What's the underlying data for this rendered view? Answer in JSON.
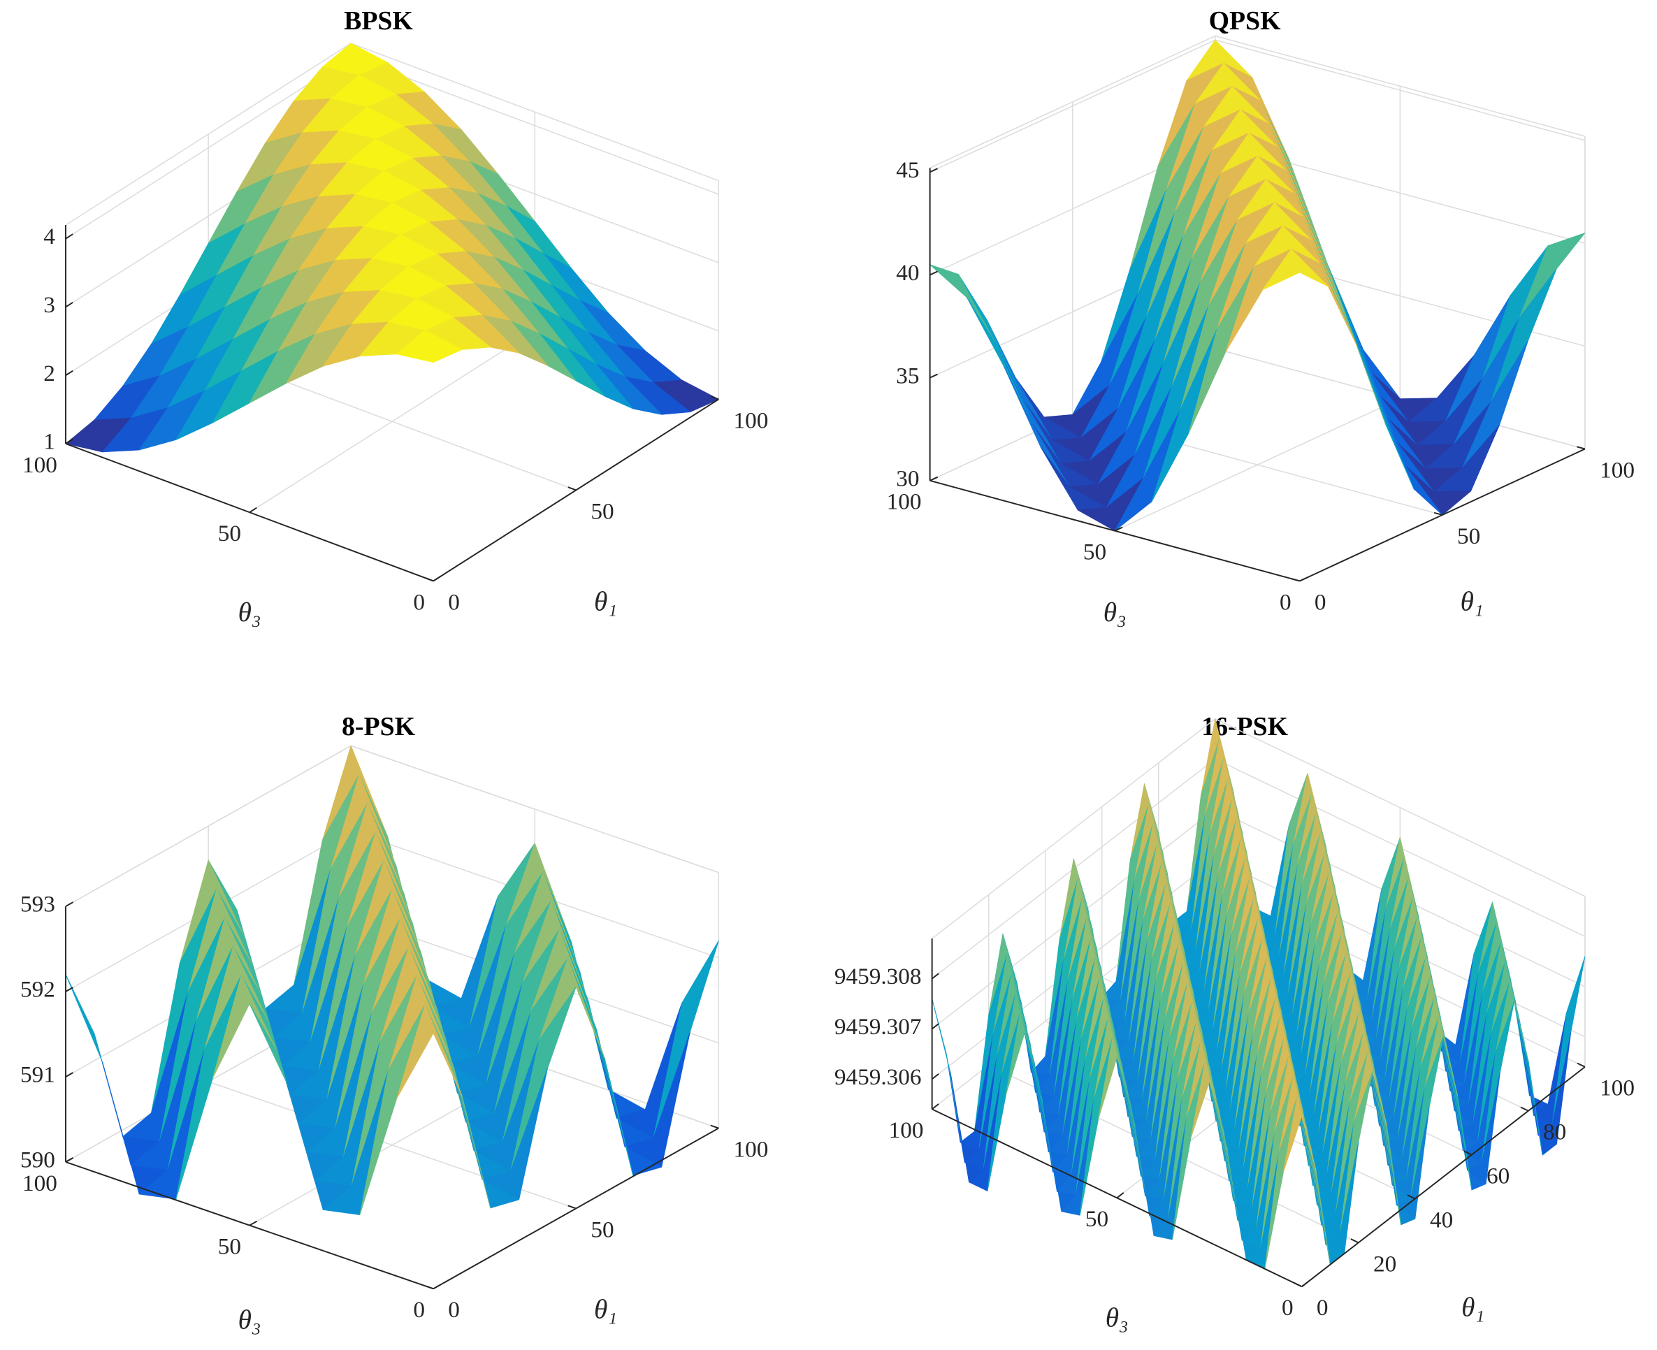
{
  "chart_data": [
    {
      "type": "surface",
      "title": "BPSK",
      "xlabel": "θ₃",
      "ylabel": "θ₁",
      "colormap": "parula",
      "grid": true,
      "x": [
        0,
        10,
        20,
        30,
        40,
        50,
        60,
        70,
        80,
        90,
        100
      ],
      "y": [
        0,
        10,
        20,
        30,
        40,
        50,
        60,
        70,
        80,
        90,
        100
      ],
      "z": [
        [
          4.2,
          4.12,
          3.89,
          3.54,
          3.09,
          2.6,
          2.11,
          1.66,
          1.31,
          1.08,
          1.0
        ],
        [
          4.12,
          4.2,
          4.12,
          3.89,
          3.54,
          3.09,
          2.6,
          2.11,
          1.66,
          1.31,
          1.08
        ],
        [
          3.89,
          4.12,
          4.2,
          4.12,
          3.89,
          3.54,
          3.09,
          2.6,
          2.11,
          1.66,
          1.31
        ],
        [
          3.54,
          3.89,
          4.12,
          4.2,
          4.12,
          3.89,
          3.54,
          3.09,
          2.6,
          2.11,
          1.66
        ],
        [
          3.09,
          3.54,
          3.89,
          4.12,
          4.2,
          4.12,
          3.89,
          3.54,
          3.09,
          2.6,
          2.11
        ],
        [
          2.6,
          3.09,
          3.54,
          3.89,
          4.12,
          4.2,
          4.12,
          3.89,
          3.54,
          3.09,
          2.6
        ],
        [
          2.11,
          2.6,
          3.09,
          3.54,
          3.89,
          4.12,
          4.2,
          4.12,
          3.89,
          3.54,
          3.09
        ],
        [
          1.66,
          2.11,
          2.6,
          3.09,
          3.54,
          3.89,
          4.12,
          4.2,
          4.12,
          3.89,
          3.54
        ],
        [
          1.31,
          1.66,
          2.11,
          2.6,
          3.09,
          3.54,
          3.89,
          4.12,
          4.2,
          4.12,
          3.89
        ],
        [
          1.08,
          1.31,
          1.66,
          2.11,
          2.6,
          3.09,
          3.54,
          3.89,
          4.12,
          4.2,
          4.12
        ],
        [
          1.0,
          1.08,
          1.31,
          1.66,
          2.11,
          2.6,
          3.09,
          3.54,
          3.89,
          4.12,
          4.2
        ]
      ],
      "xlim": [
        0,
        100
      ],
      "ylim": [
        0,
        100
      ],
      "zlim": [
        1,
        4.2
      ],
      "xticks": [
        0,
        50,
        100
      ],
      "yticks": [
        0,
        50,
        100
      ],
      "zticks": [
        1,
        2,
        3,
        4
      ]
    },
    {
      "type": "surface",
      "title": "QPSK",
      "xlabel": "θ₃",
      "ylabel": "θ₁",
      "colormap": "parula",
      "grid": true,
      "x": [
        0,
        10,
        20,
        30,
        40,
        50,
        60,
        70,
        80,
        90,
        100
      ],
      "y": [
        0,
        10,
        20,
        30,
        40,
        50,
        60,
        70,
        80,
        90,
        100
      ],
      "z": [
        [
          45,
          43.67,
          40.17,
          35.73,
          31.91,
          30,
          30.52,
          33.08,
          36.53,
          39.39,
          40.5
        ],
        [
          43.67,
          45,
          43.67,
          40.17,
          35.73,
          31.91,
          30,
          30.52,
          33.08,
          36.53,
          39.39
        ],
        [
          40.17,
          43.67,
          45,
          43.67,
          40.17,
          35.73,
          31.91,
          30,
          30.52,
          33.08,
          36.53
        ],
        [
          35.73,
          40.17,
          43.67,
          45,
          43.67,
          40.17,
          35.73,
          31.91,
          30,
          30.52,
          33.08
        ],
        [
          31.91,
          35.73,
          40.17,
          43.67,
          45,
          43.67,
          40.17,
          35.73,
          31.91,
          30,
          30.52
        ],
        [
          30,
          31.91,
          35.73,
          40.17,
          43.67,
          45,
          43.67,
          40.17,
          35.73,
          31.91,
          30
        ],
        [
          30.52,
          30,
          31.91,
          35.73,
          40.17,
          43.67,
          45,
          43.67,
          40.17,
          35.73,
          31.91
        ],
        [
          33.08,
          30.52,
          30,
          31.91,
          35.73,
          40.17,
          43.67,
          45,
          43.67,
          40.17,
          35.73
        ],
        [
          36.53,
          33.08,
          30.52,
          30,
          31.91,
          35.73,
          40.17,
          43.67,
          45,
          43.67,
          40.17
        ],
        [
          39.39,
          36.53,
          33.08,
          30.52,
          30,
          31.91,
          35.73,
          40.17,
          43.67,
          45,
          43.67
        ],
        [
          40.5,
          39.39,
          36.53,
          33.08,
          30.52,
          30,
          31.91,
          35.73,
          40.17,
          43.67,
          45
        ]
      ],
      "xlim": [
        0,
        100
      ],
      "ylim": [
        0,
        100
      ],
      "zlim": [
        30,
        45.2
      ],
      "xticks": [
        0,
        50,
        100
      ],
      "yticks": [
        0,
        50,
        100
      ],
      "zticks": [
        30,
        35,
        40,
        45
      ]
    },
    {
      "type": "surface",
      "title": "8-PSK",
      "xlabel": "θ₃",
      "ylabel": "θ₁",
      "colormap": "parula",
      "grid": true,
      "x": [
        0,
        10,
        20,
        30,
        40,
        50,
        60,
        70,
        80,
        90,
        100
      ],
      "y": [
        0,
        10,
        20,
        30,
        40,
        50,
        60,
        70,
        80,
        90,
        100
      ],
      "z": [
        [
          593,
          592.08,
          590.57,
          590.48,
          591.83,
          592.6,
          591.58,
          590.01,
          589.92,
          591.32,
          592.2
        ],
        [
          592.08,
          593,
          592.08,
          590.57,
          590.48,
          591.83,
          592.6,
          591.58,
          590.01,
          589.92,
          591.32
        ],
        [
          590.57,
          592.08,
          593,
          592.08,
          590.57,
          590.48,
          591.83,
          592.6,
          591.58,
          590.01,
          589.92
        ],
        [
          590.48,
          590.57,
          592.08,
          593,
          592.08,
          590.57,
          590.48,
          591.83,
          592.6,
          591.58,
          590.01
        ],
        [
          591.83,
          590.48,
          590.57,
          592.08,
          593,
          592.08,
          590.57,
          590.48,
          591.83,
          592.6,
          591.58
        ],
        [
          592.6,
          591.83,
          590.48,
          590.57,
          592.08,
          593,
          592.08,
          590.57,
          590.48,
          591.83,
          592.6
        ],
        [
          591.58,
          592.6,
          591.83,
          590.48,
          590.57,
          592.08,
          593,
          592.08,
          590.57,
          590.48,
          591.83
        ],
        [
          590.01,
          591.58,
          592.6,
          591.83,
          590.48,
          590.57,
          592.08,
          593,
          592.08,
          590.57,
          590.48
        ],
        [
          589.92,
          590.01,
          591.58,
          592.6,
          591.83,
          590.48,
          590.57,
          592.08,
          593,
          592.08,
          590.57
        ],
        [
          591.32,
          589.92,
          590.01,
          591.58,
          592.6,
          591.83,
          590.48,
          590.57,
          592.08,
          593,
          592.08
        ],
        [
          592.2,
          591.32,
          589.92,
          590.01,
          591.58,
          592.6,
          591.83,
          590.48,
          590.57,
          592.08,
          593
        ]
      ],
      "xlim": [
        0,
        100
      ],
      "ylim": [
        0,
        100
      ],
      "zlim": [
        590,
        593
      ],
      "xticks": [
        0,
        50,
        100
      ],
      "yticks": [
        0,
        50,
        100
      ],
      "zticks": [
        590,
        591,
        592,
        593
      ]
    },
    {
      "type": "surface",
      "title": "16-PSK",
      "xlabel": "θ₃",
      "ylabel": "θ₁",
      "colormap": "parula",
      "grid": true,
      "x": [
        0,
        5,
        10,
        15,
        20,
        25,
        30,
        35,
        40,
        45,
        50,
        55,
        60,
        65,
        70,
        75,
        80,
        85,
        90,
        95,
        100
      ],
      "y": [
        0,
        5,
        10,
        15,
        20,
        25,
        30,
        35,
        40,
        45,
        50,
        55,
        60,
        65,
        70,
        75,
        80,
        85,
        90,
        95,
        100
      ],
      "z": [
        [
          9459.3088,
          9459.3075,
          9459.3054,
          9459.3054,
          9459.3074,
          9459.3086,
          9459.3073,
          9459.3051,
          9459.305,
          9459.307,
          9459.3082,
          9459.3068,
          9459.3047,
          9459.3046,
          9459.3066,
          9459.3078,
          9459.3064,
          9459.3043,
          9459.3043,
          9459.3063,
          9459.3076
        ],
        [
          9459.3075,
          9459.3088,
          9459.3075,
          9459.3054,
          9459.3054,
          9459.3074,
          9459.3086,
          9459.3073,
          9459.3051,
          9459.305,
          9459.307,
          9459.3082,
          9459.3068,
          9459.3047,
          9459.3046,
          9459.3066,
          9459.3078,
          9459.3064,
          9459.3043,
          9459.3043,
          9459.3063
        ],
        [
          9459.3054,
          9459.3075,
          9459.3088,
          9459.3075,
          9459.3054,
          9459.3054,
          9459.3074,
          9459.3086,
          9459.3073,
          9459.3051,
          9459.305,
          9459.307,
          9459.3082,
          9459.3068,
          9459.3047,
          9459.3046,
          9459.3066,
          9459.3078,
          9459.3064,
          9459.3043,
          9459.3043
        ],
        [
          9459.3054,
          9459.3054,
          9459.3075,
          9459.3088,
          9459.3075,
          9459.3054,
          9459.3054,
          9459.3074,
          9459.3086,
          9459.3073,
          9459.3051,
          9459.305,
          9459.307,
          9459.3082,
          9459.3068,
          9459.3047,
          9459.3046,
          9459.3066,
          9459.3078,
          9459.3064,
          9459.3043
        ],
        [
          9459.3074,
          9459.3054,
          9459.3054,
          9459.3075,
          9459.3088,
          9459.3075,
          9459.3054,
          9459.3054,
          9459.3074,
          9459.3086,
          9459.3073,
          9459.3051,
          9459.305,
          9459.307,
          9459.3082,
          9459.3068,
          9459.3047,
          9459.3046,
          9459.3066,
          9459.3078,
          9459.3064
        ],
        [
          9459.3086,
          9459.3074,
          9459.3054,
          9459.3054,
          9459.3075,
          9459.3088,
          9459.3075,
          9459.3054,
          9459.3054,
          9459.3074,
          9459.3086,
          9459.3073,
          9459.3051,
          9459.305,
          9459.307,
          9459.3082,
          9459.3068,
          9459.3047,
          9459.3046,
          9459.3066,
          9459.3078
        ],
        [
          9459.3073,
          9459.3086,
          9459.3074,
          9459.3054,
          9459.3054,
          9459.3075,
          9459.3088,
          9459.3075,
          9459.3054,
          9459.3054,
          9459.3074,
          9459.3086,
          9459.3073,
          9459.3051,
          9459.305,
          9459.307,
          9459.3082,
          9459.3068,
          9459.3047,
          9459.3046,
          9459.3066
        ],
        [
          9459.3051,
          9459.3073,
          9459.3086,
          9459.3074,
          9459.3054,
          9459.3054,
          9459.3075,
          9459.3088,
          9459.3075,
          9459.3054,
          9459.3054,
          9459.3074,
          9459.3086,
          9459.3073,
          9459.3051,
          9459.305,
          9459.307,
          9459.3082,
          9459.3068,
          9459.3047,
          9459.3046
        ],
        [
          9459.305,
          9459.3051,
          9459.3073,
          9459.3086,
          9459.3074,
          9459.3054,
          9459.3054,
          9459.3075,
          9459.3088,
          9459.3075,
          9459.3054,
          9459.3054,
          9459.3074,
          9459.3086,
          9459.3073,
          9459.3051,
          9459.305,
          9459.307,
          9459.3082,
          9459.3068,
          9459.3047
        ],
        [
          9459.307,
          9459.305,
          9459.3051,
          9459.3073,
          9459.3086,
          9459.3074,
          9459.3054,
          9459.3054,
          9459.3075,
          9459.3088,
          9459.3075,
          9459.3054,
          9459.3054,
          9459.3074,
          9459.3086,
          9459.3073,
          9459.3051,
          9459.305,
          9459.307,
          9459.3082,
          9459.3068
        ],
        [
          9459.3082,
          9459.307,
          9459.305,
          9459.3051,
          9459.3073,
          9459.3086,
          9459.3074,
          9459.3054,
          9459.3054,
          9459.3075,
          9459.3088,
          9459.3075,
          9459.3054,
          9459.3054,
          9459.3074,
          9459.3086,
          9459.3073,
          9459.3051,
          9459.305,
          9459.307,
          9459.3082
        ],
        [
          9459.3068,
          9459.3082,
          9459.307,
          9459.305,
          9459.3051,
          9459.3073,
          9459.3086,
          9459.3074,
          9459.3054,
          9459.3054,
          9459.3075,
          9459.3088,
          9459.3075,
          9459.3054,
          9459.3054,
          9459.3074,
          9459.3086,
          9459.3073,
          9459.3051,
          9459.305,
          9459.307
        ],
        [
          9459.3047,
          9459.3068,
          9459.3082,
          9459.307,
          9459.305,
          9459.3051,
          9459.3073,
          9459.3086,
          9459.3074,
          9459.3054,
          9459.3054,
          9459.3075,
          9459.3088,
          9459.3075,
          9459.3054,
          9459.3054,
          9459.3074,
          9459.3086,
          9459.3073,
          9459.3051,
          9459.305
        ],
        [
          9459.3046,
          9459.3047,
          9459.3068,
          9459.3082,
          9459.307,
          9459.305,
          9459.3051,
          9459.3073,
          9459.3086,
          9459.3074,
          9459.3054,
          9459.3054,
          9459.3075,
          9459.3088,
          9459.3075,
          9459.3054,
          9459.3054,
          9459.3074,
          9459.3086,
          9459.3073,
          9459.3051
        ],
        [
          9459.3066,
          9459.3046,
          9459.3047,
          9459.3068,
          9459.3082,
          9459.307,
          9459.305,
          9459.3051,
          9459.3073,
          9459.3086,
          9459.3074,
          9459.3054,
          9459.3054,
          9459.3075,
          9459.3088,
          9459.3075,
          9459.3054,
          9459.3054,
          9459.3074,
          9459.3086,
          9459.3073
        ],
        [
          9459.3078,
          9459.3066,
          9459.3046,
          9459.3047,
          9459.3068,
          9459.3082,
          9459.307,
          9459.305,
          9459.3051,
          9459.3073,
          9459.3086,
          9459.3074,
          9459.3054,
          9459.3054,
          9459.3075,
          9459.3088,
          9459.3075,
          9459.3054,
          9459.3054,
          9459.3074,
          9459.3086
        ],
        [
          9459.3064,
          9459.3078,
          9459.3066,
          9459.3046,
          9459.3047,
          9459.3068,
          9459.3082,
          9459.307,
          9459.305,
          9459.3051,
          9459.3073,
          9459.3086,
          9459.3074,
          9459.3054,
          9459.3054,
          9459.3075,
          9459.3088,
          9459.3075,
          9459.3054,
          9459.3054,
          9459.3074
        ],
        [
          9459.3043,
          9459.3064,
          9459.3078,
          9459.3066,
          9459.3046,
          9459.3047,
          9459.3068,
          9459.3082,
          9459.307,
          9459.305,
          9459.3051,
          9459.3073,
          9459.3086,
          9459.3074,
          9459.3054,
          9459.3054,
          9459.3075,
          9459.3088,
          9459.3075,
          9459.3054,
          9459.3054
        ],
        [
          9459.3043,
          9459.3043,
          9459.3064,
          9459.3078,
          9459.3066,
          9459.3046,
          9459.3047,
          9459.3068,
          9459.3082,
          9459.307,
          9459.305,
          9459.3051,
          9459.3073,
          9459.3086,
          9459.3074,
          9459.3054,
          9459.3054,
          9459.3075,
          9459.3088,
          9459.3075,
          9459.3054
        ],
        [
          9459.3063,
          9459.3043,
          9459.3043,
          9459.3064,
          9459.3078,
          9459.3066,
          9459.3046,
          9459.3047,
          9459.3068,
          9459.3082,
          9459.307,
          9459.305,
          9459.3051,
          9459.3073,
          9459.3086,
          9459.3074,
          9459.3054,
          9459.3054,
          9459.3075,
          9459.3088,
          9459.3075
        ],
        [
          9459.3076,
          9459.3063,
          9459.3043,
          9459.3043,
          9459.3064,
          9459.3078,
          9459.3066,
          9459.3046,
          9459.3047,
          9459.3068,
          9459.3082,
          9459.307,
          9459.305,
          9459.3051,
          9459.3073,
          9459.3086,
          9459.3074,
          9459.3054,
          9459.3054,
          9459.3075,
          9459.3088
        ]
      ],
      "xlim": [
        0,
        100
      ],
      "ylim": [
        0,
        100
      ],
      "zlim": [
        9459.3054,
        9459.3088
      ],
      "xticks": [
        0,
        50,
        100
      ],
      "yticks": [
        0,
        20,
        40,
        60,
        80,
        100
      ],
      "zticks": [
        9459.306,
        9459.307,
        9459.308
      ]
    }
  ]
}
